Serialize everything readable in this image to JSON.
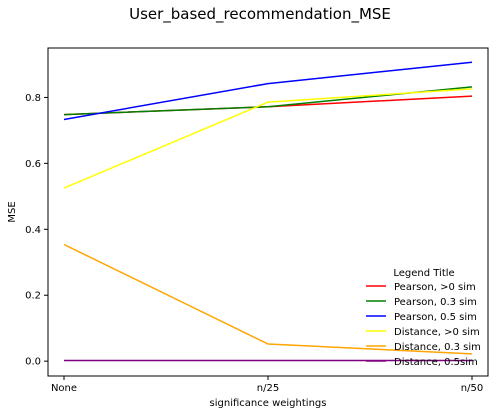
{
  "chart_data": {
    "type": "line",
    "title": "User_based_recommendation_MSE",
    "xlabel": "significance weightings",
    "ylabel": "MSE",
    "categories": [
      "None",
      "n/25",
      "n/50"
    ],
    "ylim": [
      -0.045,
      0.95
    ],
    "yticks": [
      0.0,
      0.2,
      0.4,
      0.6,
      0.8
    ],
    "ytick_labels": [
      "0.0",
      "0.2",
      "0.4",
      "0.6",
      "0.8"
    ],
    "legend_title": "Legend Title",
    "legend_position": "lower-right",
    "grid": false,
    "series": [
      {
        "name": "Pearson, >0 sim",
        "color": "#ff0000",
        "values": [
          0.748,
          0.772,
          0.804
        ]
      },
      {
        "name": "Pearson, 0.3 sim",
        "color": "#008000",
        "values": [
          0.748,
          0.772,
          0.832
        ]
      },
      {
        "name": "Pearson, 0.5 sim",
        "color": "#0000ff",
        "values": [
          0.733,
          0.842,
          0.907
        ]
      },
      {
        "name": "Distance, >0 sim",
        "color": "#ffff00",
        "values": [
          0.525,
          0.786,
          0.826
        ]
      },
      {
        "name": "Distance, 0.3 sim",
        "color": "#ffa500",
        "values": [
          0.354,
          0.052,
          0.022
        ]
      },
      {
        "name": "Distance, 0.5sim",
        "color": "#800080",
        "values": [
          0.002,
          0.002,
          0.002
        ]
      }
    ]
  }
}
